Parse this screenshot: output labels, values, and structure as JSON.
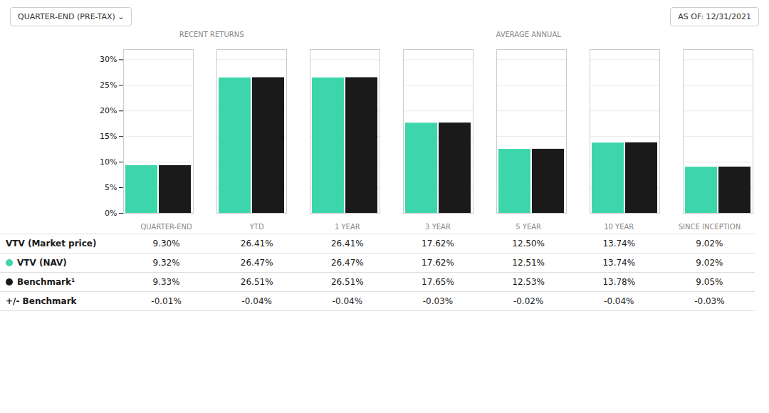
{
  "chart_data": {
    "type": "bar",
    "annotations": [
      "QUARTER-END (PRE-TAX)  ⌄",
      "AS OF: 12/31/2021",
      "RECENT RETURNS",
      "AVERAGE ANNUAL"
    ],
    "categories": [
      "QUARTER-END",
      "YTD",
      "1 YEAR",
      "3 YEAR",
      "5 YEAR",
      "10 YEAR",
      "SINCE INCEPTION"
    ],
    "series": [
      {
        "name": "VTV (NAV)",
        "color": "#3dd6ac",
        "values": [
          9.32,
          26.47,
          26.47,
          17.62,
          12.51,
          13.74,
          9.02
        ]
      },
      {
        "name": "Benchmark¹",
        "color": "#1a1a1a",
        "values": [
          9.33,
          26.51,
          26.51,
          17.65,
          12.53,
          13.78,
          9.05
        ]
      }
    ],
    "ylim": [
      0,
      32
    ],
    "yticks": [
      {
        "value": 0,
        "label": "0%"
      },
      {
        "value": 5,
        "label": "5%"
      },
      {
        "value": 10,
        "label": "10%"
      },
      {
        "value": 15,
        "label": "15%"
      },
      {
        "value": 20,
        "label": "20%"
      },
      {
        "value": 25,
        "label": "25%"
      },
      {
        "value": 30,
        "label": "30%"
      }
    ],
    "grid": true,
    "tick_labels": "y",
    "table": [
      {
        "label": "VTV (Market price)",
        "values": [
          "9.30%",
          "26.41%",
          "26.41%",
          "17.62%",
          "12.50%",
          "13.74%",
          "9.02%"
        ]
      },
      {
        "label": "VTV (NAV)",
        "values": [
          "9.32%",
          "26.47%",
          "26.47%",
          "17.62%",
          "12.51%",
          "13.74%",
          "9.02%"
        ]
      },
      {
        "label": "Benchmark¹",
        "values": [
          "9.33%",
          "26.51%",
          "26.51%",
          "17.65%",
          "12.53%",
          "13.78%",
          "9.05%"
        ]
      },
      {
        "label": "+/- Benchmark",
        "values": [
          "-0.01%",
          "-0.04%",
          "-0.04%",
          "-0.03%",
          "-0.02%",
          "-0.04%",
          "-0.03%"
        ]
      }
    ]
  }
}
